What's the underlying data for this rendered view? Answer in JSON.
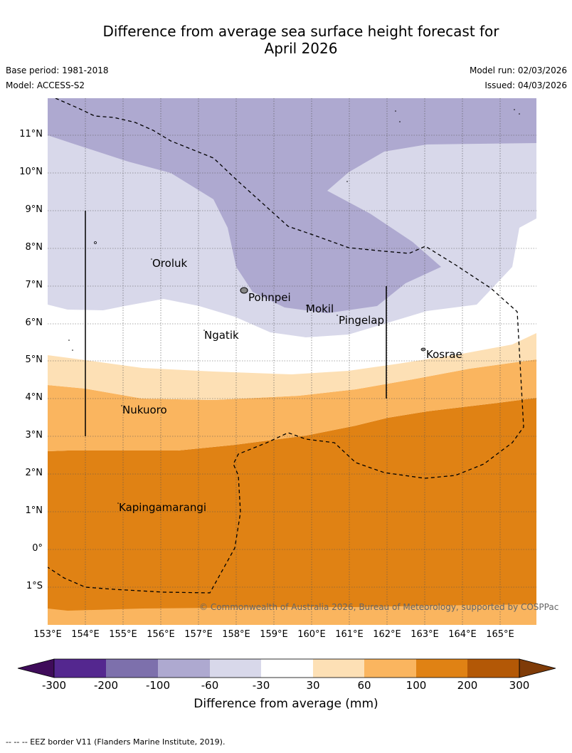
{
  "title": {
    "line1": "Difference from average sea surface height forecast for",
    "line2": "April 2026"
  },
  "meta": {
    "base_period": "Base period: 1981-2018",
    "model": "Model: ACCESS-S2",
    "model_run": "Model run: 02/03/2026",
    "issued": "Issued: 04/03/2026"
  },
  "axes": {
    "lat_labels": [
      "11°N",
      "10°N",
      "9°N",
      "8°N",
      "7°N",
      "6°N",
      "5°N",
      "4°N",
      "3°N",
      "2°N",
      "1°N",
      "0°",
      "1°S"
    ],
    "lon_labels": [
      "153°E",
      "154°E",
      "155°E",
      "156°E",
      "157°E",
      "158°E",
      "159°E",
      "160°E",
      "161°E",
      "162°E",
      "163°E",
      "164°E",
      "165°E"
    ]
  },
  "places": [
    "Oroluk",
    "Pohnpei",
    "Mokil",
    "Pingelap",
    "Ngatik",
    "Kosrae",
    "Nukuoro",
    "Kapingamarangi"
  ],
  "copyright": "© Commonwealth of Australia 2026, Bureau of Meteorology, supported by COSPPac",
  "colorbar": {
    "title": "Difference from average (mm)",
    "ticks": [
      "-300",
      "-200",
      "-100",
      "-60",
      "-30",
      "30",
      "60",
      "100",
      "200",
      "300"
    ],
    "colors": {
      "below": "#3f0c5a",
      "c1": "#54278f",
      "c2": "#7d70ac",
      "c3": "#aea9d0",
      "c4": "#d8d8ea",
      "c5": "#ffffff",
      "c6": "#fde0b5",
      "c7": "#fab55f",
      "c8": "#e08214",
      "c9": "#b35806",
      "above": "#7f3b08"
    }
  },
  "footnote": "-- -- -- EEZ border V11 (Flanders Marine Institute, 2019)."
}
